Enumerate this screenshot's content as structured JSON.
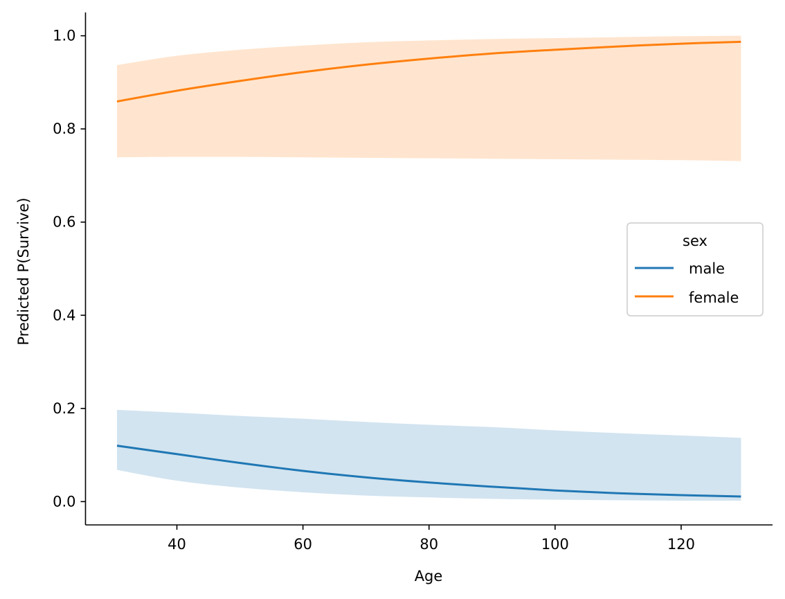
{
  "chart_data": {
    "type": "line",
    "title": "",
    "xlabel": "Age",
    "ylabel": "Predicted P(Survive)",
    "xlim": [
      25.5,
      134.5
    ],
    "ylim": [
      -0.05,
      1.05
    ],
    "xticks": [
      40,
      60,
      80,
      100,
      120
    ],
    "yticks": [
      0.0,
      0.2,
      0.4,
      0.6,
      0.8,
      1.0
    ],
    "xtick_labels": [
      "40",
      "60",
      "80",
      "100",
      "120"
    ],
    "ytick_labels": [
      "0.0",
      "0.2",
      "0.4",
      "0.6",
      "0.8",
      "1.0"
    ],
    "grid": false,
    "legend": {
      "title": "sex",
      "placement": "center-right"
    },
    "series": [
      {
        "name": "male",
        "color": "#1f77b4",
        "band_color": "#1f77b4",
        "x": [
          30.5,
          40,
          50,
          60,
          70,
          80,
          90,
          100,
          110,
          120,
          129.5
        ],
        "y": [
          0.12,
          0.102,
          0.083,
          0.066,
          0.052,
          0.041,
          0.032,
          0.024,
          0.018,
          0.014,
          0.011
        ],
        "lower": [
          0.068,
          0.045,
          0.03,
          0.02,
          0.013,
          0.009,
          0.006,
          0.004,
          0.003,
          0.002,
          0.002
        ],
        "upper": [
          0.197,
          0.191,
          0.184,
          0.178,
          0.171,
          0.165,
          0.16,
          0.153,
          0.147,
          0.142,
          0.137
        ]
      },
      {
        "name": "female",
        "color": "#ff7f0e",
        "band_color": "#ff7f0e",
        "x": [
          30.5,
          40,
          50,
          60,
          70,
          80,
          90,
          100,
          110,
          120,
          129.5
        ],
        "y": [
          0.859,
          0.882,
          0.903,
          0.922,
          0.938,
          0.951,
          0.962,
          0.97,
          0.977,
          0.983,
          0.987
        ],
        "lower": [
          0.739,
          0.74,
          0.74,
          0.739,
          0.738,
          0.737,
          0.736,
          0.735,
          0.734,
          0.733,
          0.731
        ],
        "upper": [
          0.937,
          0.957,
          0.97,
          0.979,
          0.986,
          0.99,
          0.993,
          0.995,
          0.997,
          0.999,
          1.0
        ]
      }
    ]
  }
}
